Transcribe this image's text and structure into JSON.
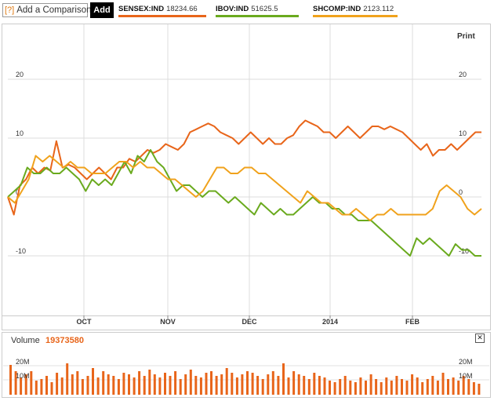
{
  "toolbar": {
    "help_label": "[?]",
    "compare_label": "Add a Comparison",
    "add_label": "Add"
  },
  "legend": [
    {
      "symbol": "SENSEX:IND",
      "value": "18234.66",
      "color": "#e8651a"
    },
    {
      "symbol": "IBOV:IND",
      "value": "51625.5",
      "color": "#6aaa1e"
    },
    {
      "symbol": "SHCOMP:IND",
      "value": "2123.112",
      "color": "#f0a21c"
    }
  ],
  "print_label": "Print",
  "volume": {
    "label": "Volume",
    "value": "19373580",
    "close_label": "✕"
  },
  "chart_data": {
    "type": "line",
    "x_labels": [
      "OCT",
      "NOV",
      "DEC",
      "2014",
      "FEB"
    ],
    "y_ticks": [
      20,
      10,
      0,
      -10
    ],
    "ylim": [
      -20,
      25
    ],
    "grid": true,
    "series": [
      {
        "name": "SENSEX:IND",
        "color": "#e8651a",
        "values": [
          0,
          -3,
          2,
          3,
          5,
          4,
          5,
          4.5,
          9.5,
          5,
          5.5,
          5,
          4,
          3,
          4,
          5,
          4,
          3,
          5,
          5,
          6.5,
          6,
          7,
          8,
          7.5,
          8,
          9,
          8.5,
          8,
          9,
          11,
          11.5,
          12,
          12.5,
          12,
          11,
          10.5,
          10,
          9,
          10,
          11,
          10,
          9,
          10,
          9,
          9,
          10,
          10.5,
          12,
          13,
          12.5,
          12,
          11,
          11,
          10,
          11,
          12,
          11,
          10,
          11,
          12,
          12,
          11.5,
          12,
          11.5,
          11,
          10,
          9,
          8,
          9,
          7,
          8,
          8,
          9,
          8,
          9,
          10,
          11,
          11
        ]
      },
      {
        "name": "IBOV:IND",
        "color": "#6aaa1e",
        "values": [
          0,
          1,
          2,
          5,
          4,
          4,
          5,
          4,
          4,
          5,
          4,
          3,
          1,
          3,
          2,
          3,
          2,
          4,
          6,
          4,
          7,
          6,
          8,
          6,
          5,
          3,
          1,
          2,
          2,
          1,
          0,
          1,
          1,
          0,
          -1,
          0,
          -1,
          -2,
          -3,
          -1,
          -2,
          -3,
          -2,
          -3,
          -3,
          -2,
          -1,
          0,
          -1,
          -1,
          -2,
          -2,
          -3,
          -3,
          -4,
          -4,
          -4,
          -5,
          -6,
          -7,
          -8,
          -9,
          -10,
          -7,
          -8,
          -7,
          -8,
          -9,
          -10,
          -8,
          -9,
          -9,
          -10,
          -10
        ]
      },
      {
        "name": "SHCOMP:IND",
        "color": "#f0a21c",
        "values": [
          0,
          -1,
          1,
          3,
          7,
          6,
          7,
          6,
          5,
          6,
          5,
          5,
          4,
          4,
          4,
          5,
          6,
          6,
          5,
          6,
          5,
          5,
          4,
          3,
          3,
          2,
          1,
          0,
          1,
          3,
          5,
          5,
          4,
          4,
          5,
          5,
          4,
          4,
          3,
          2,
          1,
          0,
          -1,
          1,
          0,
          -1,
          -1,
          -2,
          -3,
          -3,
          -2,
          -3,
          -4,
          -3,
          -3,
          -2,
          -3,
          -3,
          -3,
          -3,
          -3,
          -2,
          1,
          2,
          1,
          0,
          -2,
          -3,
          -2
        ]
      }
    ]
  }
}
